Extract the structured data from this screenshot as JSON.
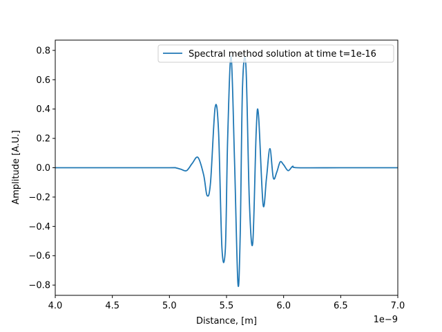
{
  "chart_data": {
    "type": "line",
    "title": "",
    "xlabel": "Distance, [m]",
    "ylabel": "Amplitude [A.U.]",
    "x_offset_label": "1e−9",
    "xlim": [
      4.0,
      7.0
    ],
    "ylim": [
      -0.87,
      0.87
    ],
    "xticks": [
      4.0,
      4.5,
      5.0,
      5.5,
      6.0,
      6.5,
      7.0
    ],
    "xtick_labels": [
      "4.0",
      "4.5",
      "5.0",
      "5.5",
      "6.0",
      "6.5",
      "7.0"
    ],
    "yticks": [
      -0.8,
      -0.6,
      -0.4,
      -0.2,
      0.0,
      0.2,
      0.4,
      0.6,
      0.8
    ],
    "ytick_labels": [
      "−0.8",
      "−0.6",
      "−0.4",
      "−0.2",
      "0.0",
      "0.2",
      "0.4",
      "0.6",
      "0.8"
    ],
    "grid": false,
    "legend_position": "top-right",
    "series": [
      {
        "name": "Spectral method solution at time t=1e-16",
        "color": "#1f77b4",
        "x": [
          4.0,
          4.5,
          5.0,
          5.05,
          5.1,
          5.15,
          5.2,
          5.25,
          5.3,
          5.33,
          5.36,
          5.4,
          5.43,
          5.46,
          5.49,
          5.51,
          5.54,
          5.57,
          5.6,
          5.62,
          5.64,
          5.67,
          5.7,
          5.73,
          5.76,
          5.78,
          5.82,
          5.85,
          5.88,
          5.91,
          5.94,
          5.97,
          6.0,
          6.04,
          6.08,
          6.12,
          6.5,
          7.0
        ],
        "y": [
          0.0,
          0.0,
          0.0,
          0.0,
          -0.01,
          -0.02,
          0.03,
          0.07,
          -0.05,
          -0.19,
          -0.1,
          0.41,
          0.25,
          -0.55,
          -0.55,
          0.2,
          0.76,
          0.05,
          -0.79,
          -0.45,
          0.55,
          0.69,
          -0.23,
          -0.51,
          0.25,
          0.36,
          -0.25,
          -0.07,
          0.13,
          -0.07,
          -0.03,
          0.04,
          0.02,
          -0.02,
          0.01,
          0.0,
          0.0,
          0.0
        ]
      }
    ]
  }
}
